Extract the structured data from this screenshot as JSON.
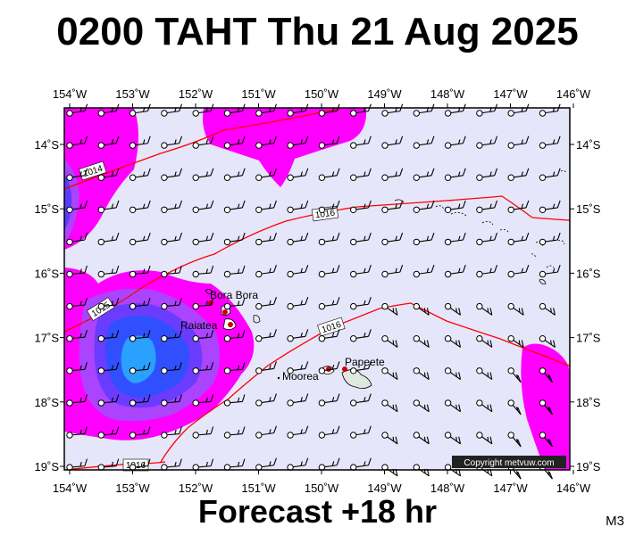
{
  "title": "0200 TAHT Thu 21 Aug 2025",
  "footer": "Forecast +18 hr",
  "model_code": "M3",
  "copyright": "Copyright metvuw.com",
  "axes": {
    "lon_labels": [
      "154˚W",
      "153˚W",
      "152˚W",
      "151˚W",
      "150˚W",
      "149˚W",
      "148˚W",
      "147˚W",
      "146˚W"
    ],
    "lat_labels": [
      "14˚S",
      "15˚S",
      "16˚S",
      "17˚S",
      "18˚S",
      "19˚S"
    ]
  },
  "places": {
    "bora_bora": "Bora Bora",
    "raiatea": "Raiatea",
    "moorea": "Moorea",
    "papeete": "Papeete"
  },
  "isobars": {
    "i1014": "1014",
    "i1015": "1015",
    "i1016a": "1016",
    "i1016b": "1016",
    "i1016c": "1016"
  },
  "colors": {
    "background": "#e6e6fa",
    "magenta": "#ff00ff",
    "violet": "#aa44ff",
    "blue": "#3050ff",
    "cyan": "#2aa0ff",
    "isobar": "#ff0000"
  }
}
